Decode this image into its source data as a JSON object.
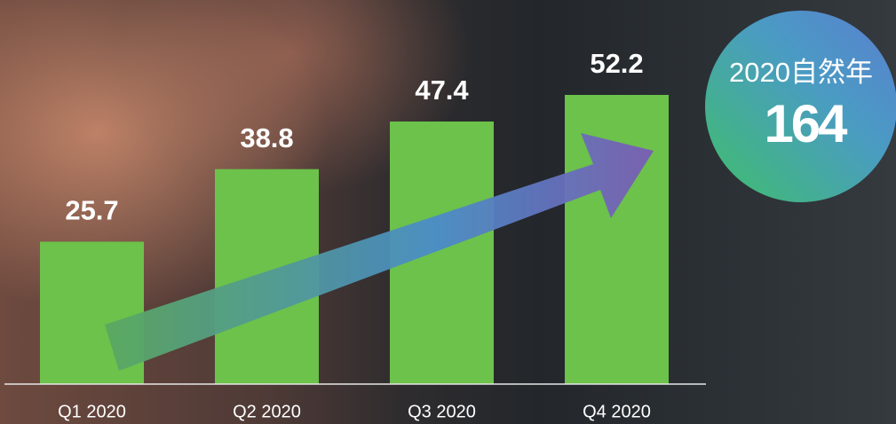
{
  "chart_data": {
    "type": "bar",
    "categories": [
      "Q1 2020",
      "Q2 2020",
      "Q3 2020",
      "Q4 2020"
    ],
    "values": [
      25.7,
      38.8,
      47.4,
      52.2
    ],
    "color": "#6cc24a"
  },
  "summary": {
    "label": "2020自然年",
    "value": "164"
  }
}
